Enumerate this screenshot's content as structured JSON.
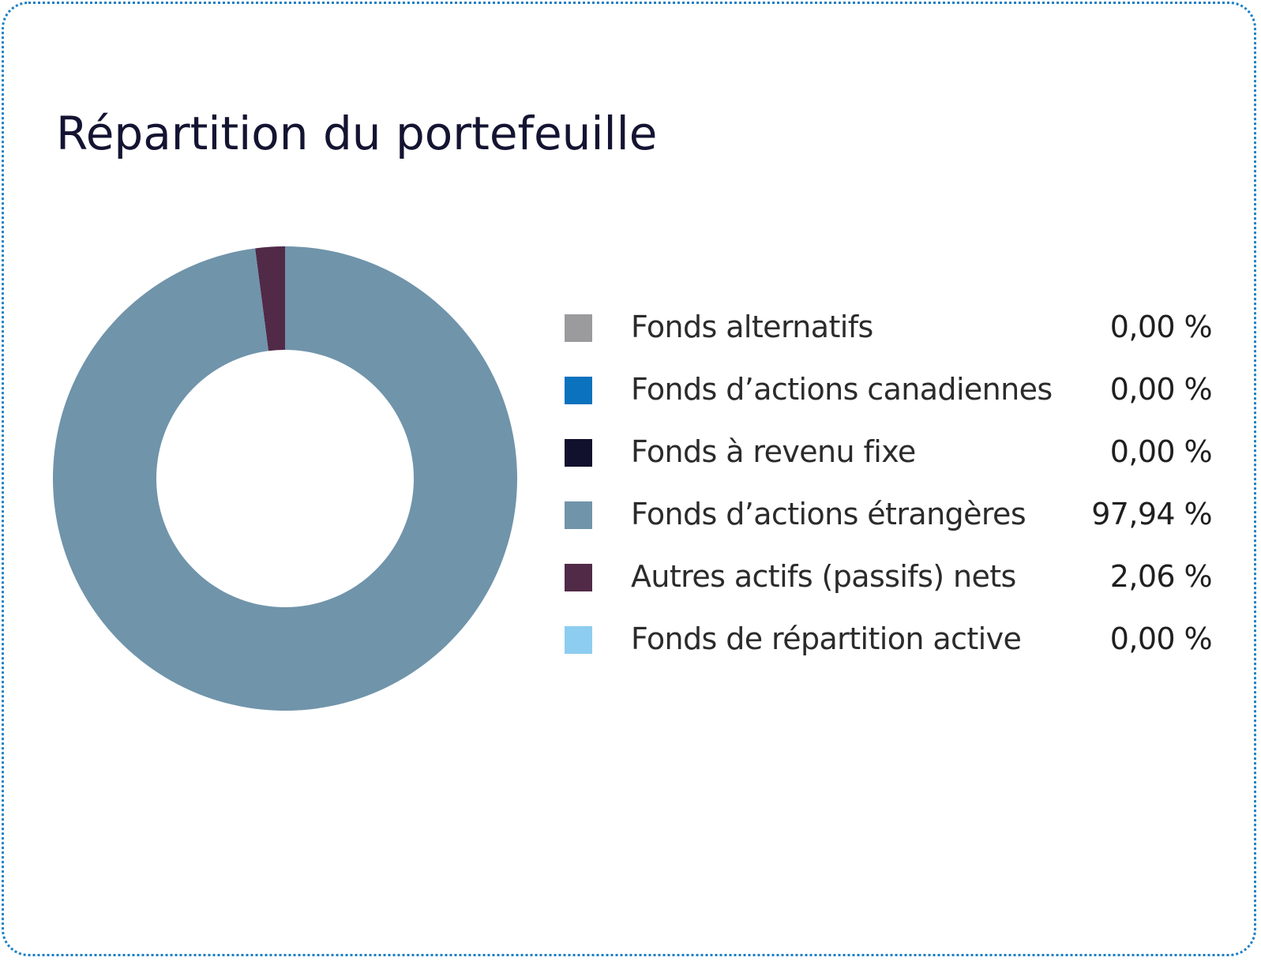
{
  "title": "Répartition du portefeuille",
  "chart_data": {
    "type": "pie",
    "title": "Répartition du portefeuille",
    "donut": true,
    "legend_placement": "right",
    "slices": [
      {
        "label": "Fonds alternatifs",
        "value": 0.0,
        "value_label": "0,00 %",
        "color": "#9b9b9d"
      },
      {
        "label": "Fonds d’actions canadiennes",
        "value": 0.0,
        "value_label": "0,00 %",
        "color": "#0b72bd"
      },
      {
        "label": "Fonds à revenu fixe",
        "value": 0.0,
        "value_label": "0,00 %",
        "color": "#11112e"
      },
      {
        "label": "Fonds d’actions étrangères",
        "value": 97.94,
        "value_label": "97,94 %",
        "color": "#7094aa"
      },
      {
        "label": "Autres actifs (passifs) nets",
        "value": 2.06,
        "value_label": "2,06 %",
        "color": "#512a48"
      },
      {
        "label": "Fonds de répartition active",
        "value": 0.0,
        "value_label": "0,00 %",
        "color": "#8dcdf0"
      }
    ]
  }
}
